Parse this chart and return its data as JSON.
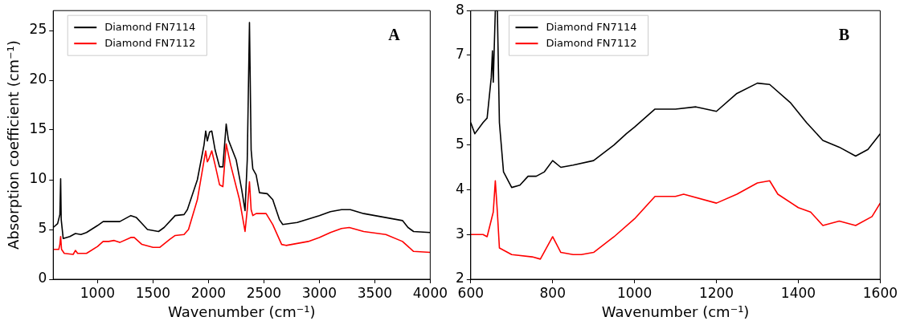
{
  "chart_data": [
    {
      "type": "line",
      "xlabel": "Wavenumber (cm⁻¹)",
      "ylabel": "Absorption coefficient (cm⁻¹)",
      "xlim": [
        600,
        4000
      ],
      "ylim": [
        0,
        27
      ],
      "xticks": [
        1000,
        1500,
        2000,
        2500,
        3000,
        3500,
        4000
      ],
      "yticks": [
        0,
        5,
        10,
        15,
        20,
        25
      ],
      "legend": "top left",
      "annotations": [
        "A"
      ],
      "series": [
        {
          "name": "Diamond FN7114",
          "color": "#000000",
          "x": [
            600,
            640,
            660,
            667,
            672,
            690,
            750,
            800,
            850,
            900,
            1000,
            1050,
            1100,
            1200,
            1300,
            1350,
            1400,
            1450,
            1550,
            1600,
            1700,
            1780,
            1810,
            1900,
            1960,
            1975,
            1990,
            2010,
            2030,
            2060,
            2100,
            2130,
            2160,
            2180,
            2250,
            2300,
            2330,
            2350,
            2370,
            2385,
            2400,
            2430,
            2460,
            2530,
            2580,
            2640,
            2670,
            2800,
            3000,
            3100,
            3200,
            3280,
            3400,
            3600,
            3750,
            3800,
            3850,
            4000
          ],
          "values": [
            5.2,
            5.6,
            6.5,
            10.1,
            6,
            4.1,
            4.3,
            4.6,
            4.5,
            4.7,
            5.4,
            5.8,
            5.8,
            5.8,
            6.4,
            6.2,
            5.6,
            5.0,
            4.8,
            5.2,
            6.4,
            6.5,
            7.0,
            10,
            13.5,
            14.9,
            13.9,
            14.8,
            14.9,
            13,
            11.3,
            11.3,
            15.6,
            14,
            12,
            9,
            6.9,
            12,
            25.8,
            13,
            11.1,
            10.5,
            8.7,
            8.6,
            8,
            6,
            5.5,
            5.7,
            6.4,
            6.8,
            7.0,
            7.0,
            6.6,
            6.2,
            5.9,
            5.2,
            4.8,
            4.7
          ]
        },
        {
          "name": "Diamond FN7112",
          "color": "#ff0000",
          "x": [
            600,
            650,
            660,
            667,
            675,
            700,
            780,
            800,
            820,
            900,
            1000,
            1050,
            1100,
            1150,
            1200,
            1300,
            1330,
            1400,
            1500,
            1560,
            1650,
            1700,
            1780,
            1820,
            1900,
            1975,
            1990,
            2000,
            2030,
            2060,
            2100,
            2130,
            2160,
            2200,
            2280,
            2330,
            2350,
            2370,
            2385,
            2400,
            2430,
            2520,
            2580,
            2660,
            2700,
            2900,
            3000,
            3100,
            3200,
            3270,
            3400,
            3600,
            3750,
            3850,
            4000
          ],
          "values": [
            3.0,
            3.0,
            3.5,
            4.3,
            3,
            2.6,
            2.5,
            2.9,
            2.6,
            2.6,
            3.3,
            3.8,
            3.8,
            3.9,
            3.7,
            4.2,
            4.2,
            3.5,
            3.2,
            3.2,
            4.0,
            4.4,
            4.5,
            5.0,
            8,
            12.9,
            11.8,
            12.0,
            12.9,
            11.5,
            9.5,
            9.3,
            13.6,
            11.5,
            8,
            4.8,
            7,
            9.8,
            7,
            6.4,
            6.6,
            6.6,
            5.5,
            3.5,
            3.4,
            3.8,
            4.2,
            4.7,
            5.1,
            5.2,
            4.8,
            4.5,
            3.8,
            2.8,
            2.7
          ]
        }
      ]
    },
    {
      "type": "line",
      "xlabel": "Wavenumber (cm⁻¹)",
      "xlim": [
        600,
        1600
      ],
      "ylim": [
        2,
        8
      ],
      "xticks": [
        600,
        800,
        1000,
        1200,
        1400,
        1600
      ],
      "yticks": [
        2,
        3,
        4,
        5,
        6,
        7,
        8
      ],
      "legend": "top left",
      "annotations": [
        "B"
      ],
      "series": [
        {
          "name": "Diamond FN7114",
          "color": "#000000",
          "x": [
            600,
            610,
            630,
            640,
            650,
            653,
            655,
            660,
            665,
            670,
            680,
            700,
            720,
            740,
            760,
            780,
            800,
            820,
            850,
            900,
            950,
            980,
            1000,
            1050,
            1070,
            1100,
            1150,
            1200,
            1250,
            1300,
            1330,
            1380,
            1420,
            1460,
            1500,
            1540,
            1570,
            1600
          ],
          "values": [
            5.5,
            5.25,
            5.5,
            5.6,
            6.5,
            7.1,
            6.4,
            8,
            8,
            5.5,
            4.4,
            4.05,
            4.1,
            4.3,
            4.3,
            4.4,
            4.65,
            4.5,
            4.55,
            4.65,
            5.0,
            5.25,
            5.4,
            5.8,
            5.8,
            5.8,
            5.85,
            5.75,
            6.15,
            6.38,
            6.35,
            5.95,
            5.5,
            5.1,
            4.95,
            4.75,
            4.9,
            5.25
          ]
        },
        {
          "name": "Diamond FN7112",
          "color": "#ff0000",
          "x": [
            600,
            630,
            640,
            655,
            660,
            665,
            670,
            700,
            750,
            770,
            800,
            820,
            850,
            870,
            900,
            950,
            1000,
            1050,
            1100,
            1120,
            1200,
            1250,
            1300,
            1330,
            1350,
            1400,
            1430,
            1460,
            1500,
            1540,
            1580,
            1600
          ],
          "values": [
            3.0,
            3.0,
            2.95,
            3.5,
            4.2,
            3.5,
            2.7,
            2.55,
            2.5,
            2.45,
            2.95,
            2.6,
            2.55,
            2.55,
            2.6,
            2.95,
            3.35,
            3.85,
            3.85,
            3.9,
            3.7,
            3.9,
            4.15,
            4.2,
            3.9,
            3.6,
            3.5,
            3.2,
            3.3,
            3.2,
            3.4,
            3.7
          ]
        }
      ]
    }
  ]
}
